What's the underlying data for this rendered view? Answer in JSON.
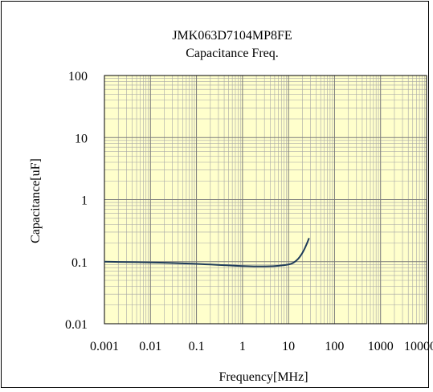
{
  "chart_data": {
    "type": "line",
    "title": "JMK063D7104MP8FE",
    "subtitle": "Capacitance Freq.",
    "xlabel": "Frequency[MHz]",
    "ylabel": "Capacitance[uF]",
    "xscale": "log",
    "yscale": "log",
    "xlim": [
      0.001,
      10000
    ],
    "ylim": [
      0.01,
      100
    ],
    "x_ticks": [
      "0.001",
      "0.01",
      "0.1",
      "1",
      "10",
      "100",
      "1000",
      "10000"
    ],
    "y_ticks": [
      "100",
      "10",
      "1",
      "0.1",
      "0.01"
    ],
    "grid": true,
    "legend": "none",
    "colors": {
      "plot_bg": "#ffffcc",
      "grid": "#a6a6a6",
      "line": "#1f3c5a"
    },
    "series": [
      {
        "x": [
          0.001,
          0.002,
          0.005,
          0.01,
          0.02,
          0.05,
          0.1,
          0.2,
          0.5,
          1,
          2,
          5,
          10,
          13,
          16,
          19,
          22,
          25,
          28
        ],
        "y": [
          0.1,
          0.099,
          0.098,
          0.097,
          0.096,
          0.094,
          0.092,
          0.09,
          0.087,
          0.085,
          0.084,
          0.085,
          0.09,
          0.097,
          0.11,
          0.13,
          0.158,
          0.195,
          0.24
        ]
      }
    ]
  }
}
